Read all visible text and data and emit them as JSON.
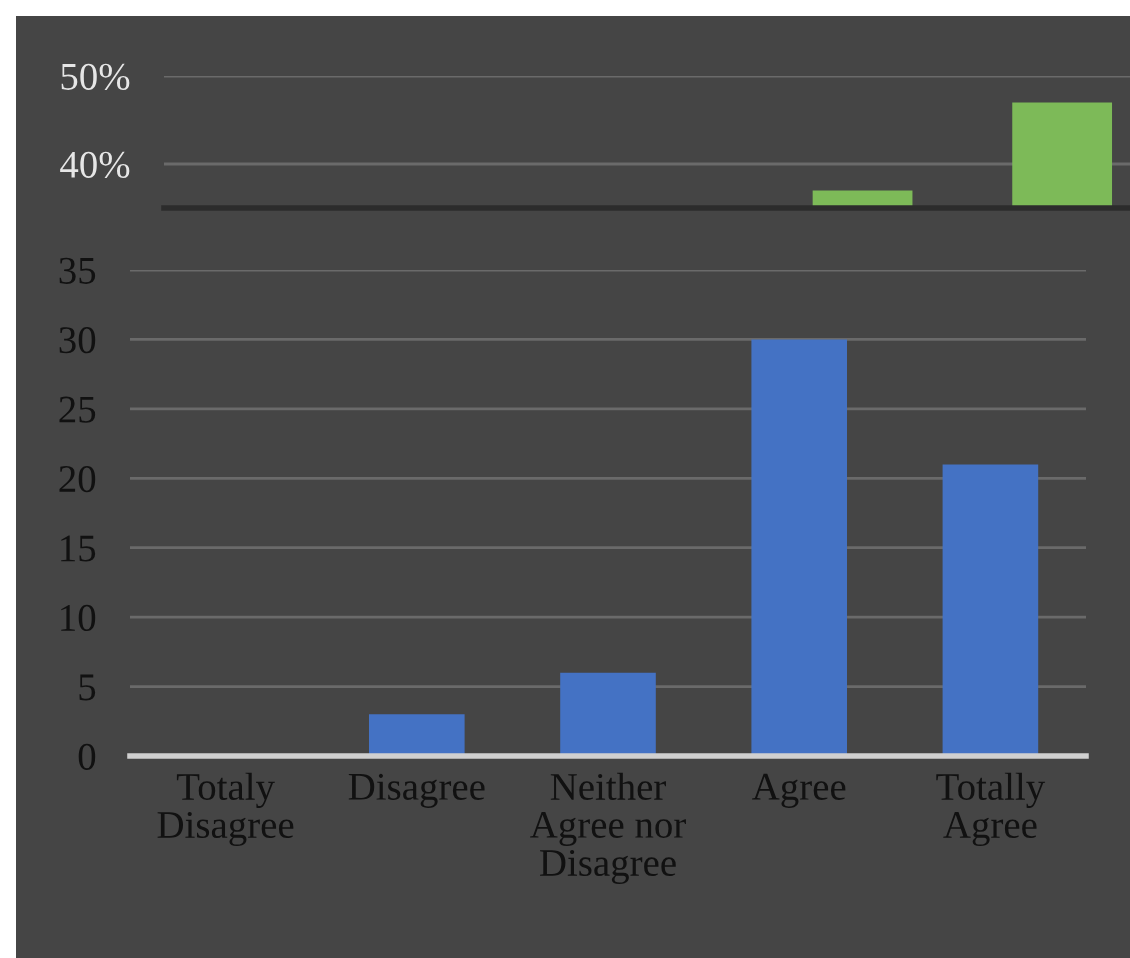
{
  "chart_data": [
    {
      "type": "bar",
      "categories": [
        null,
        null,
        null,
        null,
        null
      ],
      "values": [
        null,
        null,
        null,
        37,
        47
      ],
      "color": "#7dba58",
      "ylim": [
        35,
        50
      ],
      "yticks": [
        {
          "value": 40,
          "label": "40%"
        },
        {
          "value": 50,
          "label": "50%"
        }
      ],
      "grid": "y",
      "tick_labels": "y"
    },
    {
      "type": "bar",
      "categories": [
        "Totaly\nDisagree",
        "Disagree",
        "Neither\nAgree nor\nDisagree",
        "Agree",
        "Totally\nAgree"
      ],
      "values": [
        0,
        3,
        6,
        30,
        21
      ],
      "color": "#4472c4",
      "ylim": [
        0,
        35
      ],
      "yticks": [
        0,
        5,
        10,
        15,
        20,
        25,
        30,
        35
      ],
      "grid": "y"
    }
  ]
}
